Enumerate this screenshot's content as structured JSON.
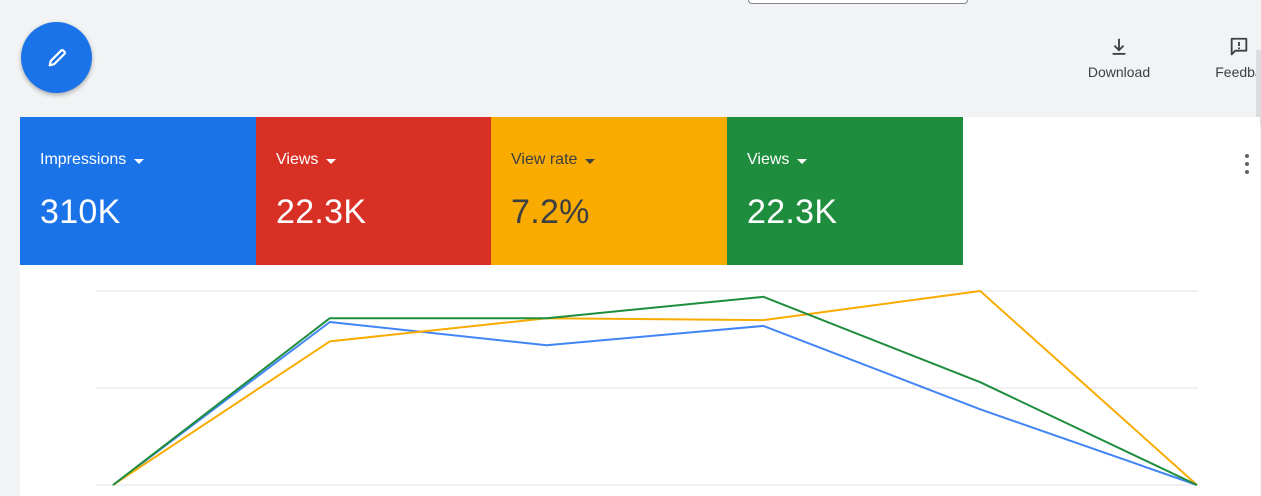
{
  "toolbar": {
    "download_label": "Download",
    "feedback_label": "Feedba"
  },
  "metrics": [
    {
      "label": "Impressions",
      "value": "310K",
      "color": "#1a73e8"
    },
    {
      "label": "Views",
      "value": "22.3K",
      "color": "#d93025"
    },
    {
      "label": "View rate",
      "value": "7.2%",
      "color": "#f9ab00"
    },
    {
      "label": "Views",
      "value": "22.3K",
      "color": "#1e8e3e"
    }
  ],
  "icons": {
    "fab": "pencil-icon",
    "download": "download-icon",
    "feedback": "feedback-icon",
    "menu": "more-vert-icon"
  },
  "chart_data": {
    "type": "line",
    "x": [
      0,
      1,
      2,
      3,
      4,
      5
    ],
    "ylim": [
      0,
      100
    ],
    "grid": true,
    "series": [
      {
        "color": "#4285f4",
        "values": [
          0,
          84,
          72,
          82,
          39,
          0
        ]
      },
      {
        "color": "#1e8e3e",
        "values": [
          0,
          86,
          86,
          97,
          53,
          0
        ]
      },
      {
        "color": "#f9ab00",
        "values": [
          0,
          74,
          86,
          85,
          null,
          0
        ],
        "values_full": [
          0,
          74,
          86,
          85,
          100,
          0
        ]
      }
    ]
  }
}
